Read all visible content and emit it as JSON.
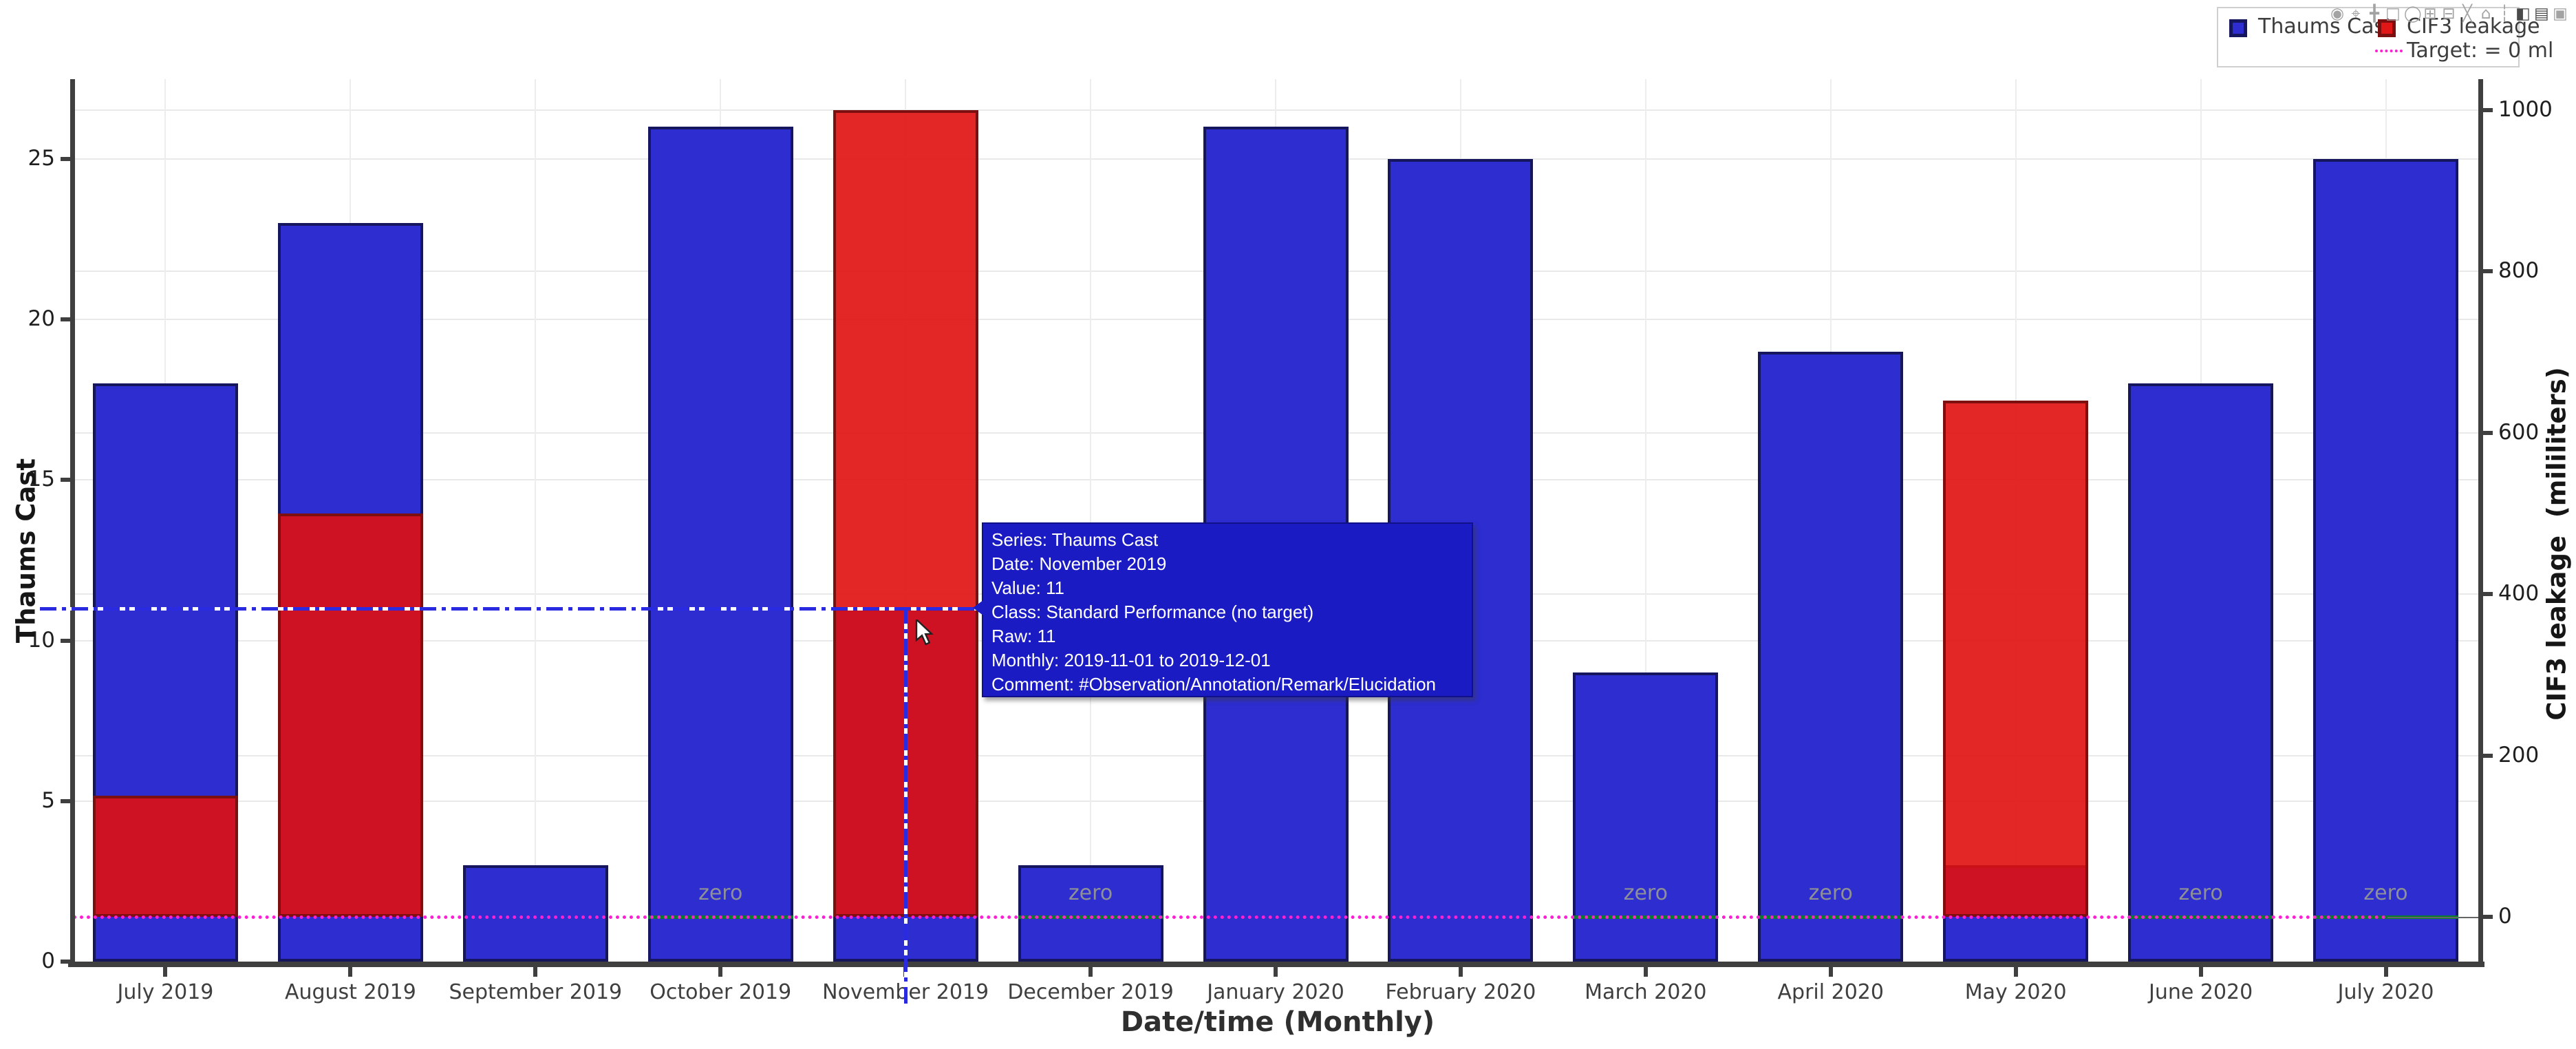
{
  "modebar": {
    "icons": [
      {
        "name": "camera-icon",
        "glyph": "◉",
        "active": false
      },
      {
        "name": "zoom-icon",
        "glyph": "⌖",
        "active": false
      },
      {
        "name": "pan-icon",
        "glyph": "╋",
        "active": false
      },
      {
        "name": "box-select-icon",
        "glyph": "□",
        "active": false
      },
      {
        "name": "lasso-select-icon",
        "glyph": "◯",
        "active": false
      },
      {
        "name": "zoom-in-icon",
        "glyph": "⊞",
        "active": false
      },
      {
        "name": "zoom-out-icon",
        "glyph": "⊟",
        "active": false
      },
      {
        "name": "autoscale-icon",
        "glyph": "╳",
        "active": false
      },
      {
        "name": "reset-axes-icon",
        "glyph": "⌂",
        "active": false
      },
      {
        "name": "toggle-spikelines-icon",
        "glyph": "┆",
        "active": false
      },
      {
        "name": "hover-closest-icon",
        "glyph": "◧",
        "active": true
      },
      {
        "name": "hover-compare-icon",
        "glyph": "▤",
        "active": true
      },
      {
        "name": "save-icon",
        "glyph": "▣",
        "active": false
      }
    ]
  },
  "legend": {
    "items": [
      {
        "label": "Thaums Cast",
        "swatch_fill": "#2d2dd0",
        "swatch_border": "#16165e"
      },
      {
        "label": "CIF3 leakage",
        "swatch_fill": "#e11717",
        "swatch_border": "#7c1010"
      }
    ],
    "target": {
      "label": "Target: = 0 ml",
      "line_color": "#ff1fd4"
    }
  },
  "tooltip": {
    "bg_color": "#1b1bc3",
    "lines": [
      "Series: Thaums Cast",
      "Date: November 2019",
      "Value: 11",
      "Class: Standard Performance (no target)",
      "Raw: 11",
      "Monthly: 2019-11-01 to 2019-12-01",
      "Comment: #Observation/Annotation/Remark/Elucidation"
    ]
  },
  "chart_data": {
    "type": "bar",
    "categories": [
      "July 2019",
      "August 2019",
      "September 2019",
      "October 2019",
      "November 2019",
      "December 2019",
      "January 2020",
      "February 2020",
      "March 2020",
      "April 2020",
      "May 2020",
      "June 2020",
      "July 2020"
    ],
    "series": [
      {
        "name": "Thaums Cast",
        "axis": "left",
        "color": "#2d2dd0",
        "border": "#16165e",
        "values": [
          18,
          23,
          3,
          26,
          11,
          3,
          26,
          25,
          9,
          19,
          3,
          18,
          25
        ]
      },
      {
        "name": "CIF3 leakage",
        "axis": "right",
        "color": "rgba(224,16,16,0.9)",
        "border": "#7c0f0f",
        "values": [
          150,
          500,
          null,
          0,
          1000,
          0,
          null,
          null,
          0,
          0,
          640,
          0,
          0
        ]
      }
    ],
    "zero_annotation": {
      "label": "zero",
      "text_color": "#8e9096",
      "line_color": "#077c2c"
    },
    "target_line": {
      "value": 0,
      "axis": "right",
      "color": "#ff1fd4",
      "style": "dotted"
    },
    "x_axis": {
      "title": "Date/time (Monthly)"
    },
    "left_axis": {
      "title": "Thaums Cast",
      "tick_labels": [
        "0",
        "5",
        "10",
        "15",
        "20",
        "25"
      ],
      "tick_values": [
        0,
        5,
        10,
        15,
        20,
        25
      ],
      "range": [
        0,
        27.5
      ]
    },
    "right_axis": {
      "title": "CIF3 leakage  (mililiters)",
      "tick_labels": [
        "0",
        "200",
        "400",
        "600",
        "800",
        "1000"
      ],
      "tick_values": [
        0,
        200,
        400,
        600,
        800,
        1000
      ],
      "range": [
        0,
        1038
      ]
    },
    "grid": true,
    "legend_position": "top-right",
    "hover": {
      "series": "Thaums Cast",
      "category": "November 2019",
      "value": 11
    }
  }
}
